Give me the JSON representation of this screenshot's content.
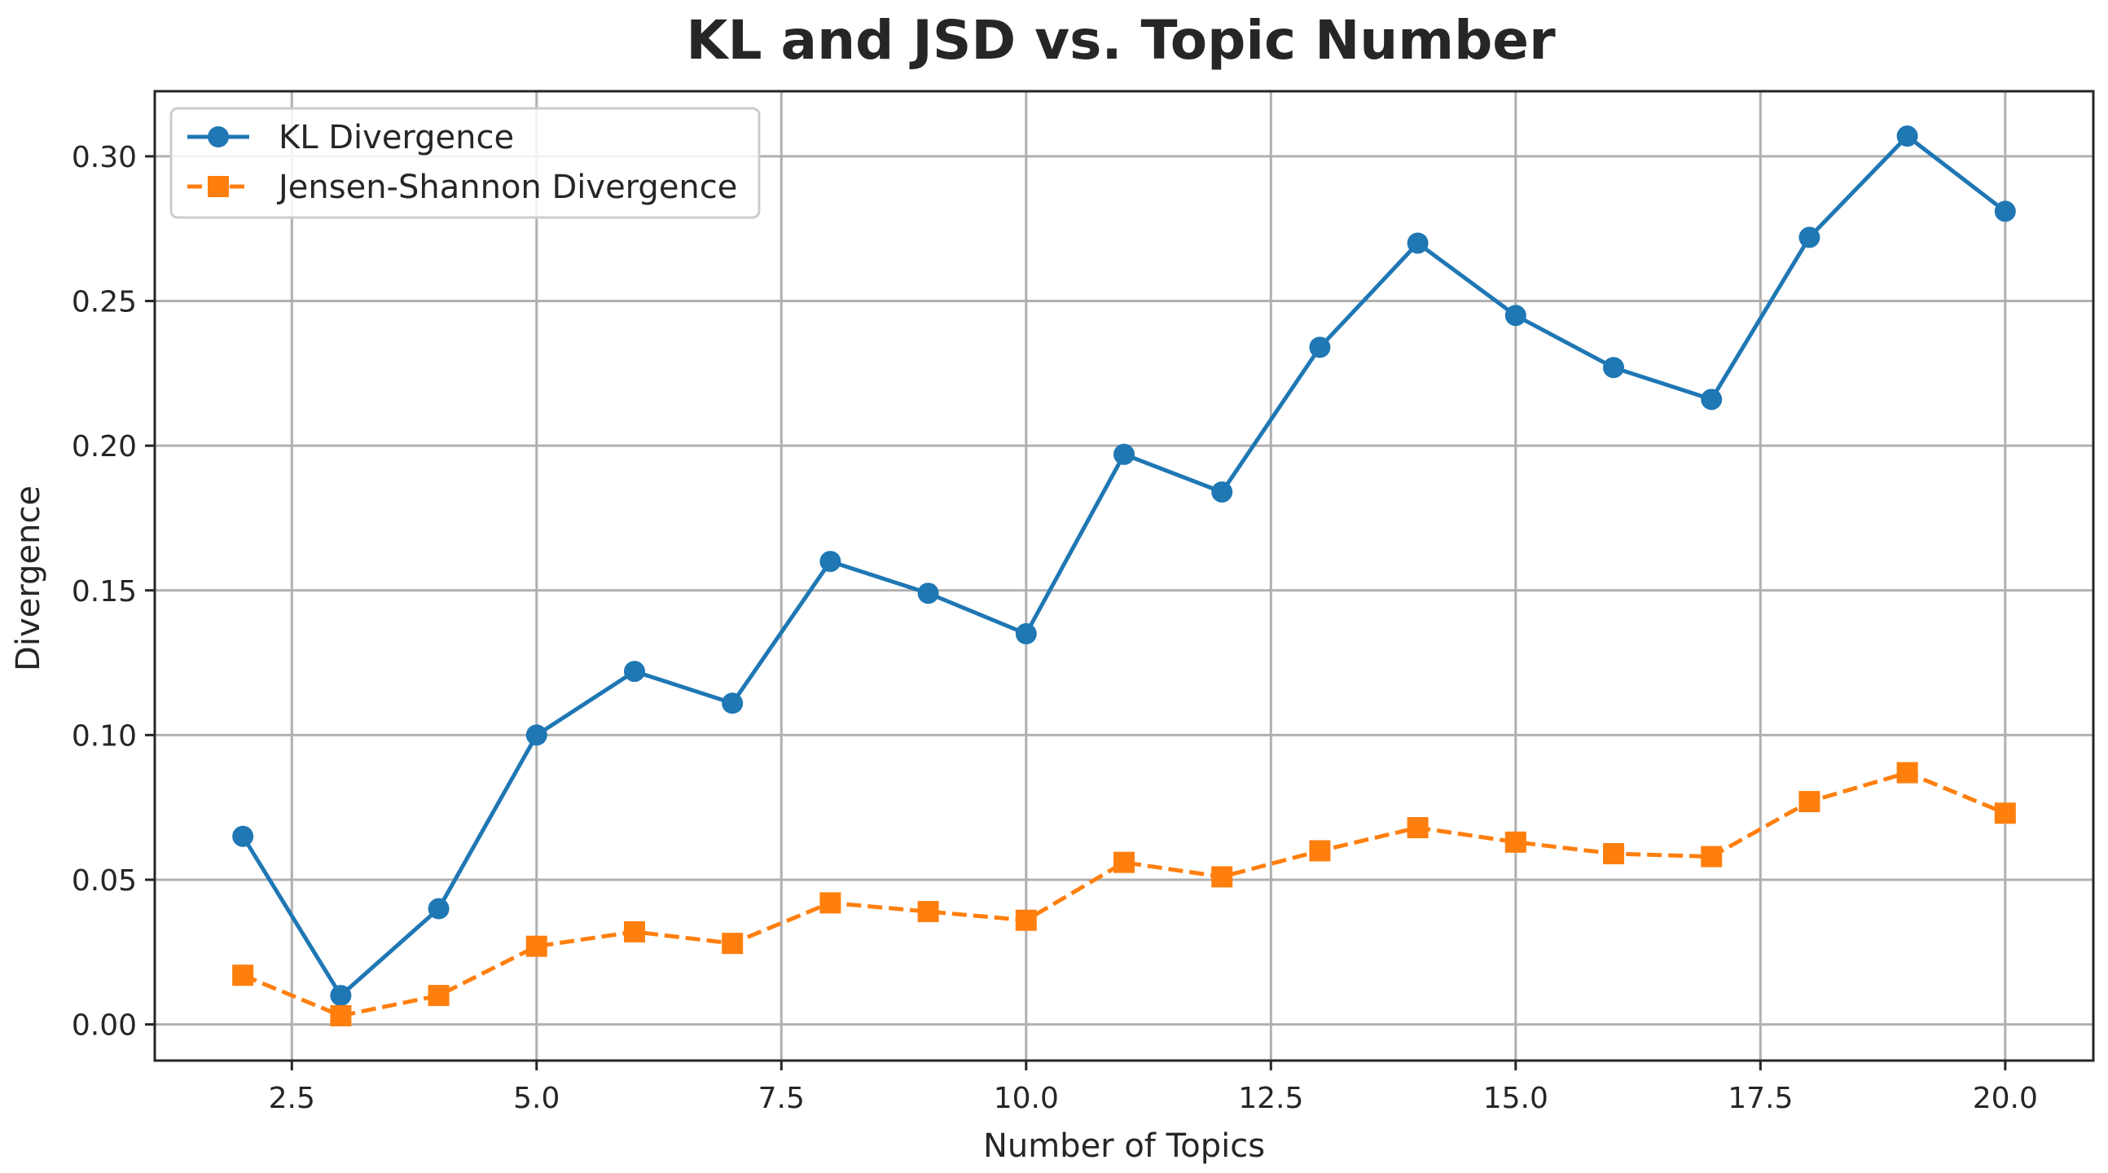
{
  "chart_data": {
    "type": "line",
    "title": "KL and JSD vs. Topic Number",
    "xlabel": "Number of Topics",
    "ylabel": "Divergence",
    "x": [
      2,
      3,
      4,
      5,
      6,
      7,
      8,
      9,
      10,
      11,
      12,
      13,
      14,
      15,
      16,
      17,
      18,
      19,
      20
    ],
    "xlim": [
      1.1,
      20.9
    ],
    "ylim": [
      -0.0125,
      0.3225
    ],
    "xticks": [
      2.5,
      5.0,
      7.5,
      10.0,
      12.5,
      15.0,
      17.5,
      20.0
    ],
    "xtick_labels": [
      "2.5",
      "5.0",
      "7.5",
      "10.0",
      "12.5",
      "15.0",
      "17.5",
      "20.0"
    ],
    "yticks": [
      0.0,
      0.05,
      0.1,
      0.15,
      0.2,
      0.25,
      0.3
    ],
    "ytick_labels": [
      "0.00",
      "0.05",
      "0.10",
      "0.15",
      "0.20",
      "0.25",
      "0.30"
    ],
    "grid": true,
    "legend_position": "top-left",
    "series": [
      {
        "name": "KL Divergence",
        "color": "#1f77b4",
        "marker": "circle",
        "line_style": "solid",
        "values": [
          0.065,
          0.01,
          0.04,
          0.1,
          0.122,
          0.111,
          0.16,
          0.149,
          0.135,
          0.197,
          0.184,
          0.234,
          0.27,
          0.245,
          0.227,
          0.216,
          0.272,
          0.307,
          0.281
        ]
      },
      {
        "name": "Jensen-Shannon Divergence",
        "color": "#ff7f0e",
        "marker": "square",
        "line_style": "dashed",
        "values": [
          0.017,
          0.003,
          0.01,
          0.027,
          0.032,
          0.028,
          0.042,
          0.039,
          0.036,
          0.056,
          0.051,
          0.06,
          0.068,
          0.063,
          0.059,
          0.058,
          0.077,
          0.087,
          0.073
        ]
      }
    ]
  }
}
